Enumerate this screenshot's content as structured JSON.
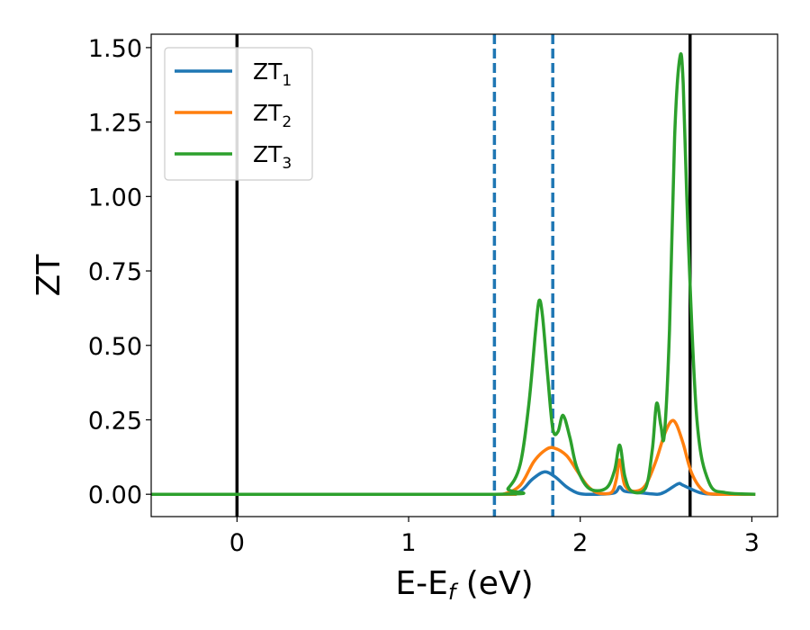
{
  "chart_data": {
    "type": "line",
    "title": "",
    "xlabel": "E-E",
    "xlabel_sub": "f",
    "xlabel_unit": " (eV)",
    "ylabel": "ZT",
    "xlim": [
      -0.5,
      3.15
    ],
    "ylim": [
      -0.075,
      1.545
    ],
    "xticks": [
      0,
      1,
      2,
      3
    ],
    "xtick_labels": [
      "0",
      "1",
      "2",
      "3"
    ],
    "yticks": [
      0,
      0.25,
      0.5,
      0.75,
      1.0,
      1.25,
      1.5
    ],
    "ytick_labels": [
      "0.00",
      "0.25",
      "0.50",
      "0.75",
      "1.00",
      "1.25",
      "1.50"
    ],
    "grid": false,
    "legend_position": "top-left",
    "vlines": [
      {
        "x": 0.0,
        "style": "solid",
        "color": "#000000"
      },
      {
        "x": 2.64,
        "style": "solid",
        "color": "#000000"
      },
      {
        "x": 1.5,
        "style": "dashed",
        "color": "#1f77b4"
      },
      {
        "x": 1.84,
        "style": "dashed",
        "color": "#1f77b4"
      }
    ],
    "series": [
      {
        "name": "ZT",
        "sub": "1",
        "color": "#1f77b4",
        "x": [
          -0.5,
          1.45,
          1.55,
          1.65,
          1.72,
          1.79,
          1.85,
          1.92,
          1.98,
          2.03,
          2.1,
          2.2,
          2.23,
          2.26,
          2.35,
          2.45,
          2.5,
          2.57,
          2.6,
          2.7,
          2.8,
          3.02
        ],
        "y": [
          0.0,
          0.0,
          0.0,
          0.01,
          0.05,
          0.075,
          0.06,
          0.025,
          0.005,
          0.0,
          0.0,
          0.005,
          0.025,
          0.01,
          0.005,
          0.0,
          0.01,
          0.035,
          0.03,
          0.005,
          0.0,
          0.0
        ]
      },
      {
        "name": "ZT",
        "sub": "2",
        "color": "#ff7f0e",
        "x": [
          -0.5,
          1.45,
          1.55,
          1.65,
          1.73,
          1.8,
          1.85,
          1.92,
          1.98,
          2.04,
          2.1,
          2.18,
          2.21,
          2.23,
          2.26,
          2.32,
          2.38,
          2.44,
          2.49,
          2.53,
          2.56,
          2.6,
          2.65,
          2.72,
          2.8,
          3.02
        ],
        "y": [
          0.0,
          0.0,
          0.0,
          0.03,
          0.11,
          0.15,
          0.155,
          0.13,
          0.08,
          0.03,
          0.005,
          0.005,
          0.05,
          0.115,
          0.03,
          0.01,
          0.03,
          0.11,
          0.2,
          0.245,
          0.235,
          0.17,
          0.07,
          0.01,
          0.0,
          0.0
        ]
      },
      {
        "name": "ZT",
        "sub": "3",
        "color": "#2ca02c",
        "x": [
          -0.5,
          1.5,
          1.58,
          1.65,
          1.7,
          1.74,
          1.76,
          1.78,
          1.81,
          1.84,
          1.87,
          1.9,
          1.94,
          1.98,
          2.05,
          2.15,
          2.2,
          2.23,
          2.26,
          2.3,
          2.38,
          2.42,
          2.445,
          2.47,
          2.49,
          2.52,
          2.55,
          2.58,
          2.6,
          2.63,
          2.68,
          2.75,
          2.85,
          3.02
        ],
        "y": [
          0.0,
          0.0,
          0.02,
          0.1,
          0.3,
          0.55,
          0.65,
          0.6,
          0.4,
          0.22,
          0.21,
          0.265,
          0.19,
          0.09,
          0.02,
          0.02,
          0.08,
          0.165,
          0.06,
          0.01,
          0.02,
          0.15,
          0.305,
          0.23,
          0.2,
          0.55,
          1.2,
          1.465,
          1.38,
          0.85,
          0.25,
          0.04,
          0.005,
          0.0
        ]
      }
    ]
  }
}
